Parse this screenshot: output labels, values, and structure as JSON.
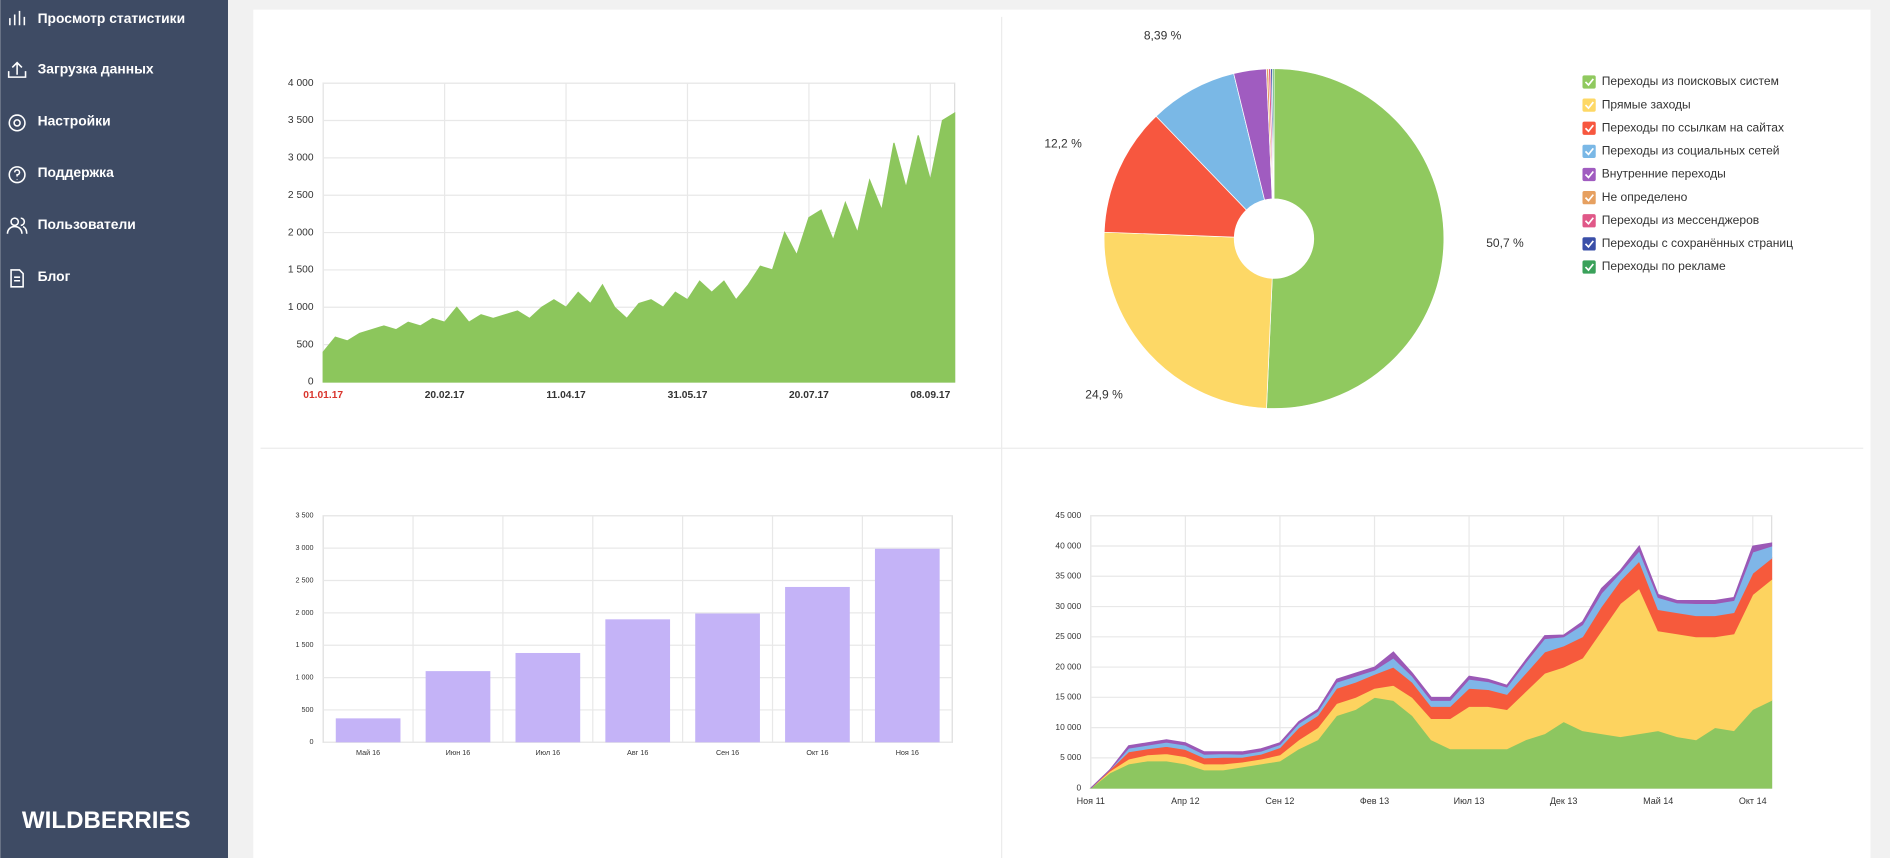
{
  "sidebar": {
    "menu": [
      "Просмотр статистики",
      "Загрузка данных",
      "Настройки",
      "Поддержка",
      "Пользователи",
      "Блог"
    ],
    "logo": "WILDBERRIES"
  },
  "chart_data": [
    {
      "type": "area",
      "color": "#8cc65c",
      "categories": [
        "01.01.17",
        null,
        null,
        null,
        null,
        null,
        null,
        null,
        null,
        null,
        "20.02.17",
        null,
        null,
        null,
        null,
        null,
        null,
        null,
        null,
        null,
        "11.04.17",
        null,
        null,
        null,
        null,
        null,
        null,
        null,
        null,
        null,
        "31.05.17",
        null,
        null,
        null,
        null,
        null,
        null,
        null,
        null,
        null,
        "20.07.17",
        null,
        null,
        null,
        null,
        null,
        null,
        null,
        null,
        null,
        "08.09.17",
        null,
        null
      ],
      "values": [
        400,
        600,
        550,
        650,
        700,
        750,
        700,
        800,
        750,
        850,
        800,
        1000,
        800,
        900,
        850,
        900,
        950,
        850,
        1000,
        1100,
        1000,
        1200,
        1050,
        1300,
        1000,
        850,
        1050,
        1100,
        1000,
        1200,
        1100,
        1350,
        1200,
        1350,
        1100,
        1300,
        1550,
        1500,
        2000,
        1700,
        2200,
        2300,
        1900,
        2400,
        2000,
        2700,
        2300,
        3200,
        2600,
        3300,
        2700,
        3500,
        3600
      ],
      "ylim": [
        0,
        4000
      ],
      "yticks": [
        0,
        500,
        {
          "value": 1000,
          "label": "1 000"
        },
        {
          "value": 1500,
          "label": "1 500"
        },
        {
          "value": 2000,
          "label": "2 000"
        },
        {
          "value": 2500,
          "label": "2 500"
        },
        {
          "value": 3000,
          "label": "3 000"
        },
        {
          "value": 3500,
          "label": "3 500"
        },
        {
          "value": 4000,
          "label": "4 000"
        }
      ],
      "grid": true
    },
    {
      "type": "pie",
      "donut": true,
      "categories": [
        "Переходы из поисковых систем",
        "Прямые заходы",
        "Переходы по ссылкам на сайтах",
        "Переходы из социальных сетей",
        "Внутренние переходы",
        "Не определено",
        "Переходы из мессенджеров",
        "Переходы с сохранённых страниц",
        "Переходы по рекламе"
      ],
      "values": [
        50.7,
        24.9,
        12.2,
        8.39,
        3.1,
        0.2,
        0.2,
        0.16,
        0.15
      ],
      "value_labels": [
        "50,7 %",
        "24,9 %",
        "12,2 %",
        "8,39 %",
        null,
        null,
        null,
        null,
        null
      ],
      "colors": [
        "#90c95f",
        "#fdd866",
        "#f7573f",
        "#7ab8e6",
        "#a05cc0",
        "#e6a060",
        "#e05888",
        "#3a4fa8",
        "#3aa15a"
      ],
      "legend": "right"
    },
    {
      "type": "bar",
      "color": "#c4b3f7",
      "categories": [
        "Май 16",
        "Июн 16",
        "Июл 16",
        "Авг 16",
        "Сен 16",
        "Окт 16",
        "Ноя 16"
      ],
      "values": [
        370,
        1100,
        1380,
        1900,
        1990,
        2400,
        2990
      ],
      "ylim": [
        0,
        3500
      ],
      "yticks": [
        0,
        500,
        {
          "value": 1000,
          "label": "1 000"
        },
        {
          "value": 1500,
          "label": "1 500"
        },
        {
          "value": 2000,
          "label": "2 000"
        },
        {
          "value": 2500,
          "label": "2 500"
        },
        {
          "value": 3000,
          "label": "3 000"
        },
        {
          "value": 3500,
          "label": "3 500"
        }
      ],
      "grid": true
    },
    {
      "type": "stacked_area",
      "categories": [
        "Ноя 11",
        null,
        null,
        null,
        null,
        "Апр 12",
        null,
        null,
        null,
        null,
        "Сен 12",
        null,
        null,
        null,
        null,
        "Фев 13",
        null,
        null,
        null,
        null,
        "Июл 13",
        null,
        null,
        null,
        null,
        "Дек 13",
        null,
        null,
        null,
        null,
        "Май 14",
        null,
        null,
        null,
        null,
        "Окт 14",
        null
      ],
      "series": [
        {
          "color": "#8dc660",
          "values": [
            0,
            2500,
            4000,
            4500,
            4500,
            4000,
            3000,
            3000,
            3500,
            4000,
            4500,
            6500,
            8000,
            12000,
            13000,
            15000,
            14500,
            12000,
            8000,
            6500,
            6500,
            6500,
            6500,
            8000,
            9000,
            11000,
            9500,
            9000,
            8500,
            9000,
            9500,
            8500,
            8000,
            10000,
            9500,
            13000,
            14500
          ]
        },
        {
          "color": "#fdd35f",
          "values": [
            0,
            300,
            800,
            1000,
            1200,
            1200,
            1000,
            1000,
            800,
            800,
            1000,
            1500,
            2000,
            2000,
            2000,
            1500,
            2500,
            3000,
            3500,
            5000,
            7000,
            7000,
            6500,
            8000,
            10000,
            9000,
            12000,
            17000,
            22000,
            24000,
            16500,
            17000,
            17000,
            15000,
            16000,
            19000,
            20000
          ]
        },
        {
          "color": "#f65a3c",
          "values": [
            0,
            200,
            1200,
            1000,
            1200,
            1200,
            1000,
            1100,
            800,
            800,
            1200,
            2000,
            2000,
            2500,
            2500,
            2300,
            3000,
            2500,
            2000,
            2000,
            3000,
            2800,
            2500,
            3000,
            3500,
            3500,
            3500,
            4000,
            3800,
            4500,
            3500,
            3500,
            3500,
            3500,
            3500,
            3500,
            3500
          ]
        },
        {
          "color": "#7fb6e8",
          "values": [
            0,
            0,
            600,
            600,
            700,
            700,
            600,
            600,
            500,
            500,
            500,
            700,
            700,
            1000,
            1000,
            700,
            1500,
            1000,
            1000,
            1000,
            1500,
            1300,
            1200,
            1800,
            2200,
            1500,
            2000,
            2200,
            1300,
            1700,
            2000,
            1600,
            2000,
            2000,
            2000,
            3500,
            2000
          ]
        },
        {
          "color": "#9b59b6",
          "values": [
            0,
            0,
            400,
            400,
            400,
            400,
            400,
            300,
            400,
            400,
            300,
            300,
            300,
            500,
            500,
            500,
            1000,
            500,
            500,
            500,
            500,
            400,
            300,
            400,
            500,
            300,
            500,
            800,
            400,
            800,
            500,
            400,
            500,
            500,
            500,
            1000,
            500
          ]
        }
      ],
      "ylim": [
        0,
        45000
      ],
      "yticks": [
        0,
        {
          "value": 5000,
          "label": "5 000"
        },
        {
          "value": 10000,
          "label": "10 000"
        },
        {
          "value": 15000,
          "label": "15 000"
        },
        {
          "value": 20000,
          "label": "20 000"
        },
        {
          "value": 25000,
          "label": "25 000"
        },
        {
          "value": 30000,
          "label": "30 000"
        },
        {
          "value": 35000,
          "label": "35 000"
        },
        {
          "value": 40000,
          "label": "40 000"
        },
        {
          "value": 45000,
          "label": "45 000"
        }
      ],
      "grid": true
    }
  ]
}
